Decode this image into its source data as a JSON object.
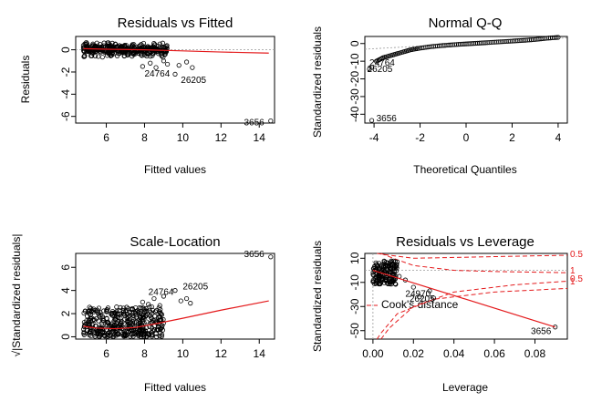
{
  "chart_data": [
    {
      "id": "p1",
      "type": "scatter",
      "title": "Residuals vs Fitted",
      "xlabel": "Fitted values",
      "ylabel": "Residuals",
      "xlim": [
        4.4,
        14.8
      ],
      "ylim": [
        -6.6,
        1.2
      ],
      "xticks": [
        6,
        8,
        10,
        12,
        14
      ],
      "yticks": [
        0,
        -2,
        -4,
        -6
      ],
      "ref_lines": [
        {
          "y": 0
        }
      ],
      "smooth": [
        [
          4.8,
          0.1
        ],
        [
          6,
          0.05
        ],
        [
          8,
          0.0
        ],
        [
          10,
          -0.1
        ],
        [
          12,
          -0.2
        ],
        [
          14.5,
          -0.3
        ]
      ],
      "cloud": {
        "xmin": 4.8,
        "xmax": 9.2,
        "ymin": -0.8,
        "ymax": 0.8
      },
      "points": [
        [
          7.9,
          -1.5
        ],
        [
          8.3,
          -1.2
        ],
        [
          8.6,
          -1.6
        ],
        [
          9.0,
          -1.0
        ],
        [
          9.2,
          -1.3
        ],
        [
          9.6,
          -2.2
        ],
        [
          9.8,
          -1.4
        ],
        [
          10.2,
          -1.1
        ],
        [
          10.5,
          -1.6
        ],
        [
          14.6,
          -6.4
        ]
      ],
      "annotations": [
        {
          "label": "24764",
          "x": 8.0,
          "y": -2.4
        },
        {
          "label": "26205",
          "x": 9.9,
          "y": -3.0
        },
        {
          "label": "3656",
          "x": 13.2,
          "y": -6.8
        }
      ]
    },
    {
      "id": "p2",
      "type": "scatter",
      "title": "Normal Q-Q",
      "xlabel": "Theoretical Quantiles",
      "ylabel": "Standardized residuals",
      "xlim": [
        -4.4,
        4.4
      ],
      "ylim": [
        -45,
        4
      ],
      "xticks": [
        -4,
        -2,
        0,
        2,
        4
      ],
      "yticks": [
        0,
        -10,
        -20,
        -30,
        -40
      ],
      "ref_lines": [
        {
          "line": [
            [
              -4.4,
              -3.2
            ],
            [
              4.4,
              3.2
            ]
          ]
        }
      ],
      "qq_curve": [
        [
          -3.9,
          -10
        ],
        [
          -3.6,
          -8
        ],
        [
          -3.2,
          -6.5
        ],
        [
          -2.8,
          -5
        ],
        [
          -2.4,
          -3.5
        ],
        [
          -2.0,
          -2.6
        ],
        [
          -1.5,
          -1.7
        ],
        [
          -1.0,
          -1.1
        ],
        [
          -0.5,
          -0.6
        ],
        [
          0,
          -0.2
        ],
        [
          0.5,
          0.2
        ],
        [
          1.0,
          0.6
        ],
        [
          1.5,
          1.0
        ],
        [
          2.0,
          1.4
        ],
        [
          2.5,
          1.8
        ],
        [
          3.0,
          2.3
        ],
        [
          3.5,
          3.0
        ],
        [
          4.0,
          3.5
        ]
      ],
      "points": [
        [
          -4.1,
          -13.5
        ],
        [
          -4.2,
          -14.5
        ],
        [
          -4.1,
          -43.5
        ]
      ],
      "annotations": [
        {
          "label": "24764",
          "x": -4.2,
          "y": -12.5
        },
        {
          "label": "26205",
          "x": -4.3,
          "y": -16.0
        },
        {
          "label": "3656",
          "x": -3.9,
          "y": -44.0
        }
      ]
    },
    {
      "id": "p3",
      "type": "scatter",
      "title": "Scale-Location",
      "xlabel": "Fitted values",
      "ylabel": "√|Standardized residuals|",
      "xlim": [
        4.4,
        14.8
      ],
      "ylim": [
        -0.2,
        7.2
      ],
      "xticks": [
        6,
        8,
        10,
        12,
        14
      ],
      "yticks": [
        0,
        2,
        4,
        6
      ],
      "smooth": [
        [
          4.8,
          0.9
        ],
        [
          5.5,
          0.75
        ],
        [
          6.5,
          0.7
        ],
        [
          7.5,
          0.8
        ],
        [
          8.5,
          1.1
        ],
        [
          10,
          1.6
        ],
        [
          12,
          2.3
        ],
        [
          14.5,
          3.1
        ]
      ],
      "cloud": {
        "xmin": 4.8,
        "xmax": 9.0,
        "ymin": 0,
        "ymax": 2.6
      },
      "points": [
        [
          7.9,
          3.0
        ],
        [
          8.2,
          2.8
        ],
        [
          8.5,
          3.3
        ],
        [
          8.8,
          2.7
        ],
        [
          9.0,
          3.5
        ],
        [
          9.6,
          4.0
        ],
        [
          9.9,
          3.1
        ],
        [
          10.2,
          3.3
        ],
        [
          10.4,
          2.9
        ],
        [
          14.6,
          6.9
        ]
      ],
      "annotations": [
        {
          "label": "24764",
          "x": 8.2,
          "y": 3.6
        },
        {
          "label": "26205",
          "x": 10.0,
          "y": 4.1
        },
        {
          "label": "3656",
          "x": 13.2,
          "y": 6.9
        }
      ]
    },
    {
      "id": "p4",
      "type": "scatter",
      "title": "Residuals vs Leverage",
      "xlabel": "Leverage",
      "ylabel": "Standardized residuals",
      "xlim": [
        -0.004,
        0.096
      ],
      "ylim": [
        -57,
        14
      ],
      "xticks": [
        0.0,
        0.02,
        0.04,
        0.06,
        0.08
      ],
      "yticks": [
        10,
        -10,
        -30,
        -50
      ],
      "tick_text": [
        "0.00",
        "0.02",
        "0.04",
        "0.06",
        "0.08"
      ],
      "cooks_label": "Cook's distance",
      "cooks_levels": [
        "0.5",
        "1",
        "0.5",
        "1"
      ],
      "fit_line": [
        [
          0.0,
          0
        ],
        [
          0.09,
          -47
        ]
      ],
      "cluster": {
        "xmin": 0.0,
        "xmax": 0.012,
        "ymin": -12,
        "ymax": 8
      },
      "points": [
        [
          0.013,
          -5
        ],
        [
          0.016,
          -8
        ],
        [
          0.02,
          -14
        ],
        [
          0.023,
          -22
        ],
        [
          0.028,
          -17
        ],
        [
          0.03,
          -23
        ],
        [
          0.09,
          -47
        ]
      ],
      "annotations": [
        {
          "label": "24970",
          "x": 0.016,
          "y": -22
        },
        {
          "label": "26205",
          "x": 0.018,
          "y": -26
        },
        {
          "label": "3656",
          "x": 0.078,
          "y": -53
        }
      ]
    }
  ]
}
